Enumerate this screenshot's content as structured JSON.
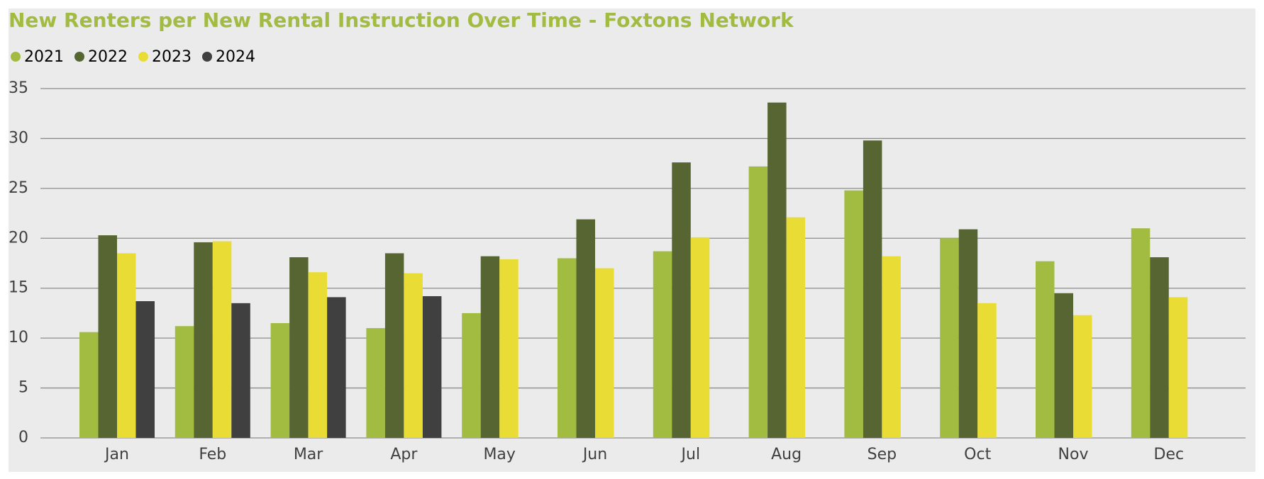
{
  "chart_data": {
    "type": "bar",
    "title": "New Renters per New Rental Instruction Over Time - Foxtons Network",
    "categories": [
      "Jan",
      "Feb",
      "Mar",
      "Apr",
      "May",
      "Jun",
      "Jul",
      "Aug",
      "Sep",
      "Oct",
      "Nov",
      "Dec"
    ],
    "series": [
      {
        "name": "2021",
        "color": "#a2bb41",
        "values": [
          10.6,
          11.2,
          11.5,
          11.0,
          12.5,
          18.0,
          18.7,
          27.2,
          24.8,
          20.0,
          17.7,
          21.0
        ]
      },
      {
        "name": "2022",
        "color": "#566531",
        "values": [
          20.3,
          19.6,
          18.1,
          18.5,
          18.2,
          21.9,
          27.6,
          33.6,
          29.8,
          20.9,
          14.5,
          18.1
        ]
      },
      {
        "name": "2023",
        "color": "#e9dd35",
        "values": [
          18.5,
          19.7,
          16.6,
          16.5,
          17.9,
          17.0,
          20.1,
          22.1,
          18.2,
          13.5,
          12.3,
          14.1
        ]
      },
      {
        "name": "2024",
        "color": "#404040",
        "values": [
          13.7,
          13.5,
          14.1,
          14.2,
          null,
          null,
          null,
          null,
          null,
          null,
          null,
          null
        ]
      }
    ],
    "ylim": [
      0,
      35
    ],
    "yticks": [
      0,
      5,
      10,
      15,
      20,
      25,
      30,
      35
    ],
    "grid": true,
    "legend": "top-left"
  }
}
